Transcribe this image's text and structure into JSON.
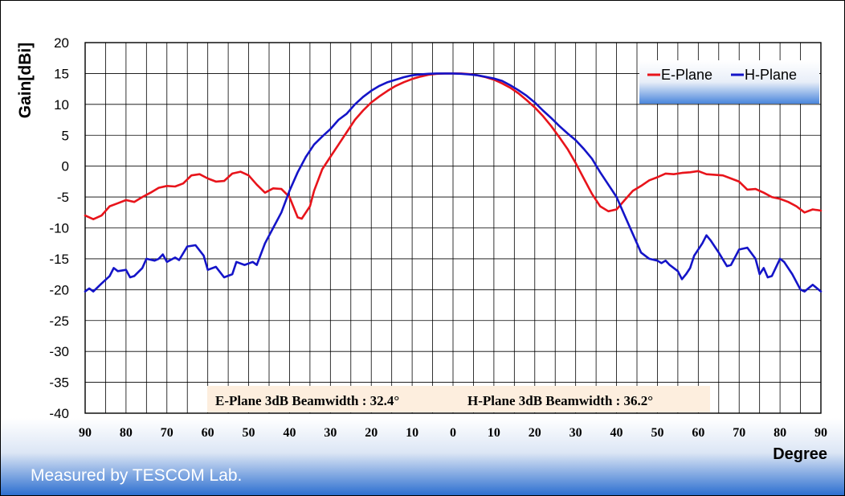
{
  "chart_data": {
    "type": "line",
    "ylabel": "Gain[dBi]",
    "xlabel": "Degree",
    "ylim": [
      -40,
      20
    ],
    "yticks": [
      20,
      15,
      10,
      5,
      0,
      -5,
      -10,
      -15,
      -20,
      -25,
      -30,
      -35,
      -40
    ],
    "xlim": [
      -90,
      90
    ],
    "xtick_values": [
      -90,
      -80,
      -70,
      -60,
      -50,
      -40,
      -30,
      -20,
      -10,
      0,
      10,
      20,
      30,
      40,
      50,
      60,
      70,
      80,
      90
    ],
    "xtick_labels": [
      "90",
      "80",
      "70",
      "60",
      "50",
      "40",
      "30",
      "20",
      "10",
      "0",
      "10",
      "20",
      "30",
      "40",
      "50",
      "60",
      "70",
      "80",
      "90"
    ],
    "grid": true,
    "legend_position": "top-right",
    "series": [
      {
        "name": "E-Plane",
        "color": "#e8141b",
        "points": [
          [
            -90,
            -8
          ],
          [
            -88,
            -8.6
          ],
          [
            -86,
            -8
          ],
          [
            -84,
            -6.5
          ],
          [
            -82,
            -6
          ],
          [
            -80,
            -5.5
          ],
          [
            -78,
            -5.8
          ],
          [
            -76,
            -5
          ],
          [
            -74,
            -4.3
          ],
          [
            -72,
            -3.5
          ],
          [
            -70,
            -3.2
          ],
          [
            -68,
            -3.3
          ],
          [
            -66,
            -2.8
          ],
          [
            -64,
            -1.5
          ],
          [
            -62,
            -1.3
          ],
          [
            -60,
            -2
          ],
          [
            -58,
            -2.5
          ],
          [
            -56,
            -2.4
          ],
          [
            -54,
            -1.2
          ],
          [
            -52,
            -0.9
          ],
          [
            -50,
            -1.5
          ],
          [
            -48,
            -3
          ],
          [
            -46,
            -4.3
          ],
          [
            -44,
            -3.6
          ],
          [
            -42,
            -3.7
          ],
          [
            -40,
            -5
          ],
          [
            -38,
            -8.3
          ],
          [
            -37,
            -8.5
          ],
          [
            -35,
            -6.5
          ],
          [
            -34,
            -4
          ],
          [
            -32,
            -0.5
          ],
          [
            -30,
            1.5
          ],
          [
            -28,
            3.5
          ],
          [
            -26,
            5.5
          ],
          [
            -24,
            7.5
          ],
          [
            -22,
            9
          ],
          [
            -20,
            10.3
          ],
          [
            -18,
            11.3
          ],
          [
            -16,
            12.2
          ],
          [
            -14,
            13
          ],
          [
            -12,
            13.6
          ],
          [
            -10,
            14.1
          ],
          [
            -8,
            14.5
          ],
          [
            -6,
            14.8
          ],
          [
            -4,
            14.95
          ],
          [
            -2,
            15
          ],
          [
            0,
            15
          ],
          [
            2,
            15
          ],
          [
            4,
            14.9
          ],
          [
            6,
            14.7
          ],
          [
            8,
            14.4
          ],
          [
            10,
            14
          ],
          [
            12,
            13.4
          ],
          [
            14,
            12.7
          ],
          [
            16,
            11.8
          ],
          [
            18,
            10.7
          ],
          [
            20,
            9.5
          ],
          [
            22,
            8.1
          ],
          [
            24,
            6.5
          ],
          [
            26,
            4.7
          ],
          [
            28,
            2.8
          ],
          [
            30,
            0.5
          ],
          [
            32,
            -2
          ],
          [
            34,
            -4.5
          ],
          [
            36,
            -6.5
          ],
          [
            38,
            -7.3
          ],
          [
            40,
            -7
          ],
          [
            42,
            -5.5
          ],
          [
            44,
            -4
          ],
          [
            46,
            -3.2
          ],
          [
            48,
            -2.3
          ],
          [
            50,
            -1.8
          ],
          [
            52,
            -1.2
          ],
          [
            54,
            -1.3
          ],
          [
            56,
            -1.1
          ],
          [
            58,
            -1
          ],
          [
            60,
            -0.8
          ],
          [
            62,
            -1.3
          ],
          [
            64,
            -1.4
          ],
          [
            66,
            -1.5
          ],
          [
            68,
            -2
          ],
          [
            70,
            -2.5
          ],
          [
            72,
            -3.8
          ],
          [
            74,
            -3.7
          ],
          [
            76,
            -4.3
          ],
          [
            78,
            -5
          ],
          [
            80,
            -5.3
          ],
          [
            82,
            -5.8
          ],
          [
            84,
            -6.5
          ],
          [
            86,
            -7.5
          ],
          [
            88,
            -7
          ],
          [
            90,
            -7.2
          ]
        ]
      },
      {
        "name": "H-Plane",
        "color": "#1414c8",
        "points": [
          [
            -90,
            -20.3
          ],
          [
            -89,
            -19.8
          ],
          [
            -88,
            -20.3
          ],
          [
            -86,
            -19
          ],
          [
            -84,
            -17.8
          ],
          [
            -83,
            -16.5
          ],
          [
            -82,
            -17
          ],
          [
            -80,
            -16.8
          ],
          [
            -79,
            -18
          ],
          [
            -78,
            -17.8
          ],
          [
            -76,
            -16.5
          ],
          [
            -75,
            -15
          ],
          [
            -73,
            -15.3
          ],
          [
            -72,
            -15
          ],
          [
            -71,
            -14.3
          ],
          [
            -70,
            -15.5
          ],
          [
            -68,
            -14.8
          ],
          [
            -67,
            -15.2
          ],
          [
            -65,
            -13
          ],
          [
            -63,
            -12.8
          ],
          [
            -61,
            -14.5
          ],
          [
            -60,
            -16.8
          ],
          [
            -58,
            -16.3
          ],
          [
            -56,
            -18
          ],
          [
            -54,
            -17.5
          ],
          [
            -53,
            -15.5
          ],
          [
            -51,
            -16
          ],
          [
            -49,
            -15.5
          ],
          [
            -48,
            -16
          ],
          [
            -46,
            -12.5
          ],
          [
            -44,
            -10
          ],
          [
            -42,
            -7.5
          ],
          [
            -40,
            -4
          ],
          [
            -38,
            -1
          ],
          [
            -36,
            1.5
          ],
          [
            -34,
            3.5
          ],
          [
            -32,
            4.8
          ],
          [
            -30,
            6
          ],
          [
            -28,
            7.5
          ],
          [
            -26,
            8.5
          ],
          [
            -24,
            10
          ],
          [
            -22,
            11.2
          ],
          [
            -20,
            12.2
          ],
          [
            -18,
            13
          ],
          [
            -16,
            13.6
          ],
          [
            -14,
            14
          ],
          [
            -12,
            14.4
          ],
          [
            -10,
            14.7
          ],
          [
            -8,
            14.85
          ],
          [
            -6,
            14.95
          ],
          [
            -4,
            15
          ],
          [
            -2,
            15
          ],
          [
            0,
            15
          ],
          [
            2,
            14.95
          ],
          [
            4,
            14.85
          ],
          [
            6,
            14.7
          ],
          [
            8,
            14.45
          ],
          [
            10,
            14.2
          ],
          [
            12,
            13.8
          ],
          [
            14,
            13.1
          ],
          [
            16,
            12.3
          ],
          [
            18,
            11.4
          ],
          [
            20,
            10.3
          ],
          [
            22,
            9
          ],
          [
            24,
            7.8
          ],
          [
            26,
            6.5
          ],
          [
            28,
            5.3
          ],
          [
            30,
            4.2
          ],
          [
            32,
            2.8
          ],
          [
            34,
            1.2
          ],
          [
            36,
            -1
          ],
          [
            38,
            -3
          ],
          [
            40,
            -5
          ],
          [
            42,
            -8
          ],
          [
            44,
            -11
          ],
          [
            46,
            -14
          ],
          [
            48,
            -15
          ],
          [
            50,
            -15.3
          ],
          [
            51,
            -15.7
          ],
          [
            52,
            -15.3
          ],
          [
            53,
            -16
          ],
          [
            55,
            -17
          ],
          [
            56,
            -18.3
          ],
          [
            57,
            -17.5
          ],
          [
            58,
            -16.5
          ],
          [
            59,
            -14.5
          ],
          [
            61,
            -12.5
          ],
          [
            62,
            -11.2
          ],
          [
            63,
            -12
          ],
          [
            65,
            -14
          ],
          [
            67,
            -16.2
          ],
          [
            68,
            -16
          ],
          [
            70,
            -13.5
          ],
          [
            72,
            -13.2
          ],
          [
            74,
            -15
          ],
          [
            75,
            -17.5
          ],
          [
            76,
            -16.5
          ],
          [
            77,
            -18
          ],
          [
            78,
            -17.8
          ],
          [
            80,
            -15
          ],
          [
            81,
            -15.5
          ],
          [
            83,
            -17.5
          ],
          [
            85,
            -20
          ],
          [
            86,
            -20.3
          ],
          [
            88,
            -19.2
          ],
          [
            90,
            -20.3
          ]
        ]
      }
    ]
  },
  "legend": {
    "items": [
      {
        "label": "E-Plane",
        "color": "#e8141b"
      },
      {
        "label": "H-Plane",
        "color": "#1414c8"
      }
    ]
  },
  "annotation": {
    "e_plane": "E-Plane 3dB Beamwidth : 32.4°",
    "h_plane": "H-Plane 3dB Beamwidth : 36.2°"
  },
  "footer": {
    "text": "Measured by TESCOM Lab."
  }
}
